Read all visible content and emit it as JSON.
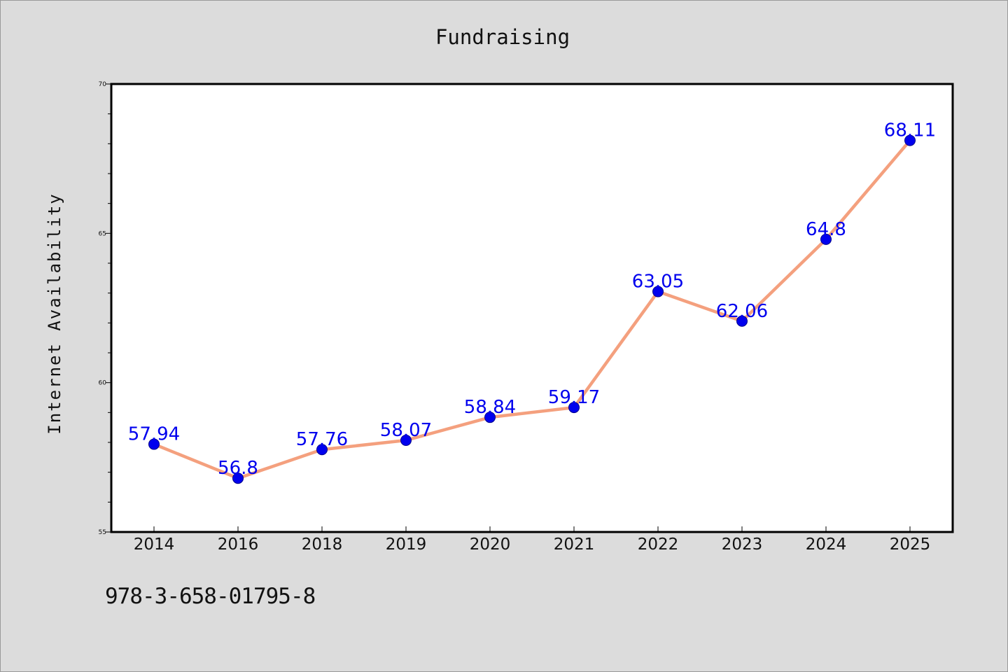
{
  "chart_data": {
    "type": "line",
    "title": "Fundraising",
    "xlabel": "",
    "ylabel": "Internet Availability",
    "categories": [
      "2014",
      "2016",
      "2018",
      "2019",
      "2020",
      "2021",
      "2022",
      "2023",
      "2024",
      "2025"
    ],
    "series": [
      {
        "values": [
          57.94,
          56.8,
          57.76,
          58.07,
          58.84,
          59.17,
          63.05,
          62.06,
          64.8,
          68.11
        ]
      }
    ],
    "data_labels": [
      "57.94",
      "56.8",
      "57.76",
      "58.07",
      "58.84",
      "59.17",
      "63.05",
      "62.06",
      "64.8",
      "68.11"
    ],
    "ylim": [
      55,
      70
    ],
    "y_ticks": [
      "55",
      "60",
      "65",
      "70"
    ],
    "grid": false,
    "line_color": "#f4a07e",
    "marker_color": "#0000ee",
    "label_color": "#0000ee"
  },
  "footer": {
    "code": "978-3-658-01795-8"
  }
}
